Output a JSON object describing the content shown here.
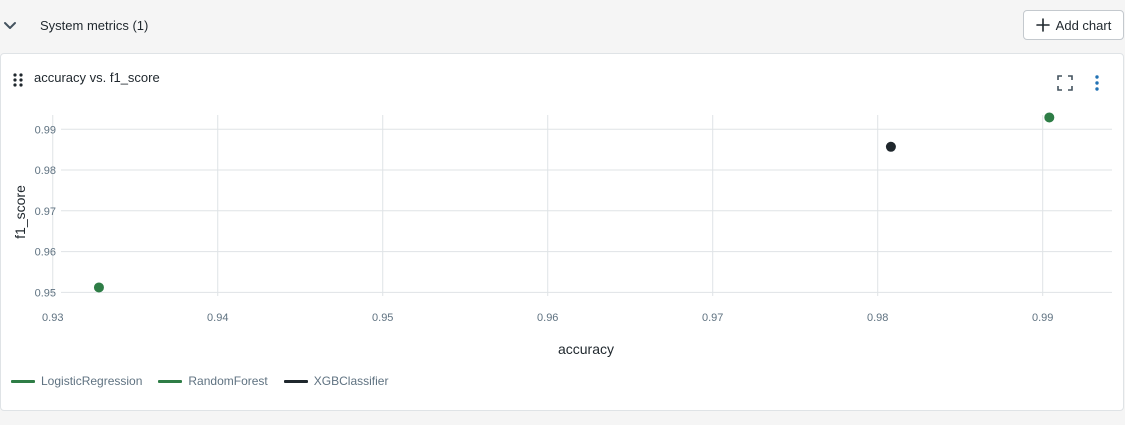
{
  "section": {
    "title": "System metrics (1)",
    "add_chart_label": "Add chart"
  },
  "card": {
    "title": "accuracy vs. f1_score"
  },
  "chart_data": {
    "type": "scatter",
    "xlabel": "accuracy",
    "ylabel": "f1_score",
    "xlim": [
      0.9305,
      0.9942
    ],
    "ylim": [
      0.9491,
      0.9935
    ],
    "x_ticks": [
      0.93,
      0.94,
      0.95,
      0.96,
      0.97,
      0.98,
      0.99
    ],
    "y_ticks": [
      0.95,
      0.96,
      0.97,
      0.98,
      0.99
    ],
    "grid": true,
    "legend_position": "bottom-left",
    "series": [
      {
        "name": "LogisticRegression",
        "color": "#2e7d46",
        "points": []
      },
      {
        "name": "RandomForest",
        "color": "#2e7d46",
        "points": [
          {
            "x": 0.9328,
            "y": 0.9512
          },
          {
            "x": 0.9904,
            "y": 0.9929
          }
        ]
      },
      {
        "name": "XGBClassifier",
        "color": "#1f272d",
        "points": [
          {
            "x": 0.9808,
            "y": 0.9857
          }
        ]
      }
    ]
  }
}
